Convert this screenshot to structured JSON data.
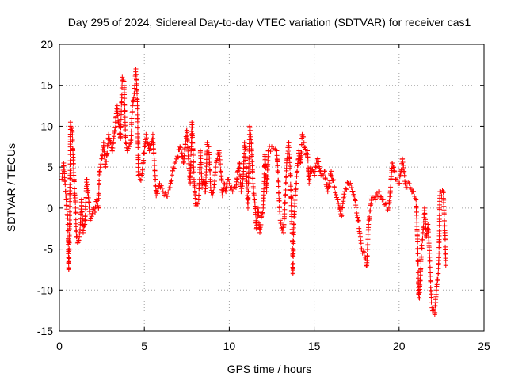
{
  "chart_data": {
    "type": "scatter",
    "title": "Day 295 of 2024, Sidereal Day-to-day VTEC variation (SDTVAR) for receiver cas1",
    "xlabel": "GPS time / hours",
    "ylabel": "SDTVAR / TECUs",
    "xlim": [
      0,
      25
    ],
    "ylim": [
      -15,
      20
    ],
    "xticks": [
      "0",
      "5",
      "10",
      "15",
      "20",
      "25"
    ],
    "yticks": [
      "-15",
      "-10",
      "-5",
      "0",
      "5",
      "10",
      "15",
      "20"
    ],
    "grid": true,
    "marker": "+",
    "series_color": "#ff0000",
    "series": [
      {
        "name": "SDTVAR",
        "anchors": [
          [
            0.15,
            3.5
          ],
          [
            0.25,
            5.5
          ],
          [
            0.4,
            1.0
          ],
          [
            0.5,
            -2.0
          ],
          [
            0.55,
            -7.5
          ],
          [
            0.6,
            -2.0
          ],
          [
            0.65,
            10.5
          ],
          [
            0.75,
            9.5
          ],
          [
            0.85,
            4.0
          ],
          [
            0.95,
            0.0
          ],
          [
            1.0,
            -3.5
          ],
          [
            1.1,
            -4.2
          ],
          [
            1.2,
            -3.0
          ],
          [
            1.3,
            1.0
          ],
          [
            1.4,
            -3.0
          ],
          [
            1.5,
            -2.0
          ],
          [
            1.6,
            3.5
          ],
          [
            1.7,
            1.5
          ],
          [
            1.8,
            -1.5
          ],
          [
            1.9,
            -1.0
          ],
          [
            2.0,
            0.0
          ],
          [
            2.1,
            -0.5
          ],
          [
            2.2,
            1.0
          ],
          [
            2.3,
            0.0
          ],
          [
            2.35,
            4.5
          ],
          [
            2.5,
            6.0
          ],
          [
            2.6,
            8.0
          ],
          [
            2.7,
            5.0
          ],
          [
            2.8,
            6.5
          ],
          [
            2.9,
            9.0
          ],
          [
            3.0,
            8.0
          ],
          [
            3.1,
            7.0
          ],
          [
            3.2,
            8.5
          ],
          [
            3.3,
            10.5
          ],
          [
            3.4,
            12.5
          ],
          [
            3.5,
            10.0
          ],
          [
            3.6,
            8.5
          ],
          [
            3.7,
            16.0
          ],
          [
            3.8,
            15.5
          ],
          [
            3.9,
            8.0
          ],
          [
            4.0,
            7.0
          ],
          [
            4.1,
            7.5
          ],
          [
            4.2,
            8.0
          ],
          [
            4.3,
            12.5
          ],
          [
            4.4,
            14.0
          ],
          [
            4.5,
            17.0
          ],
          [
            4.55,
            15.0
          ],
          [
            4.6,
            12.5
          ],
          [
            4.65,
            4.0
          ],
          [
            4.75,
            3.5
          ],
          [
            4.85,
            4.0
          ],
          [
            5.1,
            9.0
          ],
          [
            5.3,
            7.0
          ],
          [
            5.5,
            9.0
          ],
          [
            5.7,
            1.5
          ],
          [
            5.9,
            3.0
          ],
          [
            6.1,
            2.0
          ],
          [
            6.3,
            1.5
          ],
          [
            6.5,
            2.5
          ],
          [
            6.7,
            5.0
          ],
          [
            6.9,
            6.0
          ],
          [
            7.1,
            7.5
          ],
          [
            7.3,
            5.5
          ],
          [
            7.5,
            9.5
          ],
          [
            7.6,
            6.0
          ],
          [
            7.7,
            3.0
          ],
          [
            7.8,
            10.5
          ],
          [
            7.9,
            5.0
          ],
          [
            8.0,
            0.5
          ],
          [
            8.1,
            0.5
          ],
          [
            8.2,
            1.0
          ],
          [
            8.3,
            7.0
          ],
          [
            8.4,
            2.5
          ],
          [
            8.5,
            3.5
          ],
          [
            8.6,
            2.0
          ],
          [
            8.7,
            8.0
          ],
          [
            8.8,
            7.5
          ],
          [
            8.9,
            2.5
          ],
          [
            9.0,
            1.5
          ],
          [
            9.1,
            2.5
          ],
          [
            9.2,
            5.0
          ],
          [
            9.3,
            6.0
          ],
          [
            9.4,
            7.0
          ],
          [
            9.5,
            4.5
          ],
          [
            9.6,
            1.5
          ],
          [
            9.7,
            3.0
          ],
          [
            9.8,
            2.0
          ],
          [
            9.9,
            3.5
          ],
          [
            10.0,
            3.0
          ],
          [
            10.2,
            2.0
          ],
          [
            10.4,
            2.5
          ],
          [
            10.5,
            4.5
          ],
          [
            10.6,
            5.5
          ],
          [
            10.7,
            2.0
          ],
          [
            10.8,
            3.0
          ],
          [
            10.9,
            8.0
          ],
          [
            11.0,
            5.0
          ],
          [
            11.1,
            0.0
          ],
          [
            11.2,
            10.0
          ],
          [
            11.3,
            8.0
          ],
          [
            11.4,
            3.0
          ],
          [
            11.5,
            1.0
          ],
          [
            11.6,
            -2.5
          ],
          [
            11.7,
            0.0
          ],
          [
            11.8,
            -3.0
          ],
          [
            11.9,
            -1.0
          ],
          [
            12.0,
            0.0
          ],
          [
            12.1,
            6.5
          ],
          [
            12.2,
            2.0
          ],
          [
            12.3,
            7.0
          ],
          [
            12.5,
            7.5
          ],
          [
            12.8,
            7.0
          ],
          [
            13.0,
            -1.5
          ],
          [
            13.2,
            -3.0
          ],
          [
            13.4,
            6.0
          ],
          [
            13.5,
            8.0
          ],
          [
            13.6,
            4.0
          ],
          [
            13.7,
            -3.0
          ],
          [
            13.75,
            -8.0
          ],
          [
            13.8,
            -2.0
          ],
          [
            13.9,
            2.0
          ],
          [
            14.0,
            4.5
          ],
          [
            14.1,
            7.0
          ],
          [
            14.2,
            5.5
          ],
          [
            14.3,
            9.0
          ],
          [
            14.4,
            8.0
          ],
          [
            14.5,
            6.5
          ],
          [
            14.6,
            7.0
          ],
          [
            14.7,
            3.0
          ],
          [
            14.8,
            5.0
          ],
          [
            15.0,
            4.0
          ],
          [
            15.2,
            6.0
          ],
          [
            15.4,
            4.0
          ],
          [
            15.6,
            4.5
          ],
          [
            15.8,
            2.0
          ],
          [
            16.0,
            4.5
          ],
          [
            16.2,
            2.5
          ],
          [
            16.4,
            1.0
          ],
          [
            16.6,
            -1.0
          ],
          [
            16.8,
            2.0
          ],
          [
            17.0,
            3.0
          ],
          [
            17.2,
            2.5
          ],
          [
            17.4,
            1.0
          ],
          [
            17.6,
            -1.5
          ],
          [
            17.8,
            -5.0
          ],
          [
            18.0,
            -6.0
          ],
          [
            18.1,
            -7.0
          ],
          [
            18.2,
            -2.0
          ],
          [
            18.4,
            1.5
          ],
          [
            18.6,
            1.0
          ],
          [
            18.8,
            2.0
          ],
          [
            19.0,
            1.0
          ],
          [
            19.2,
            0.5
          ],
          [
            19.4,
            0.0
          ],
          [
            19.6,
            5.5
          ],
          [
            19.8,
            3.5
          ],
          [
            20.0,
            3.0
          ],
          [
            20.2,
            6.0
          ],
          [
            20.4,
            2.5
          ],
          [
            20.6,
            3.0
          ],
          [
            20.8,
            2.0
          ],
          [
            21.0,
            1.0
          ],
          [
            21.1,
            -5.0
          ],
          [
            21.15,
            -10.5
          ],
          [
            21.2,
            -11.0
          ],
          [
            21.3,
            -6.0
          ],
          [
            21.4,
            -3.0
          ],
          [
            21.5,
            0.0
          ],
          [
            21.6,
            -3.5
          ],
          [
            21.7,
            -2.0
          ],
          [
            21.8,
            -6.0
          ],
          [
            21.9,
            -11.5
          ],
          [
            22.0,
            -12.5
          ],
          [
            22.1,
            -13.0
          ],
          [
            22.2,
            -10.0
          ],
          [
            22.3,
            -8.0
          ],
          [
            22.35,
            -5.5
          ],
          [
            22.4,
            2.0
          ],
          [
            22.5,
            1.5
          ],
          [
            22.6,
            2.0
          ],
          [
            22.7,
            -3.0
          ],
          [
            22.75,
            -7.0
          ]
        ]
      }
    ]
  }
}
